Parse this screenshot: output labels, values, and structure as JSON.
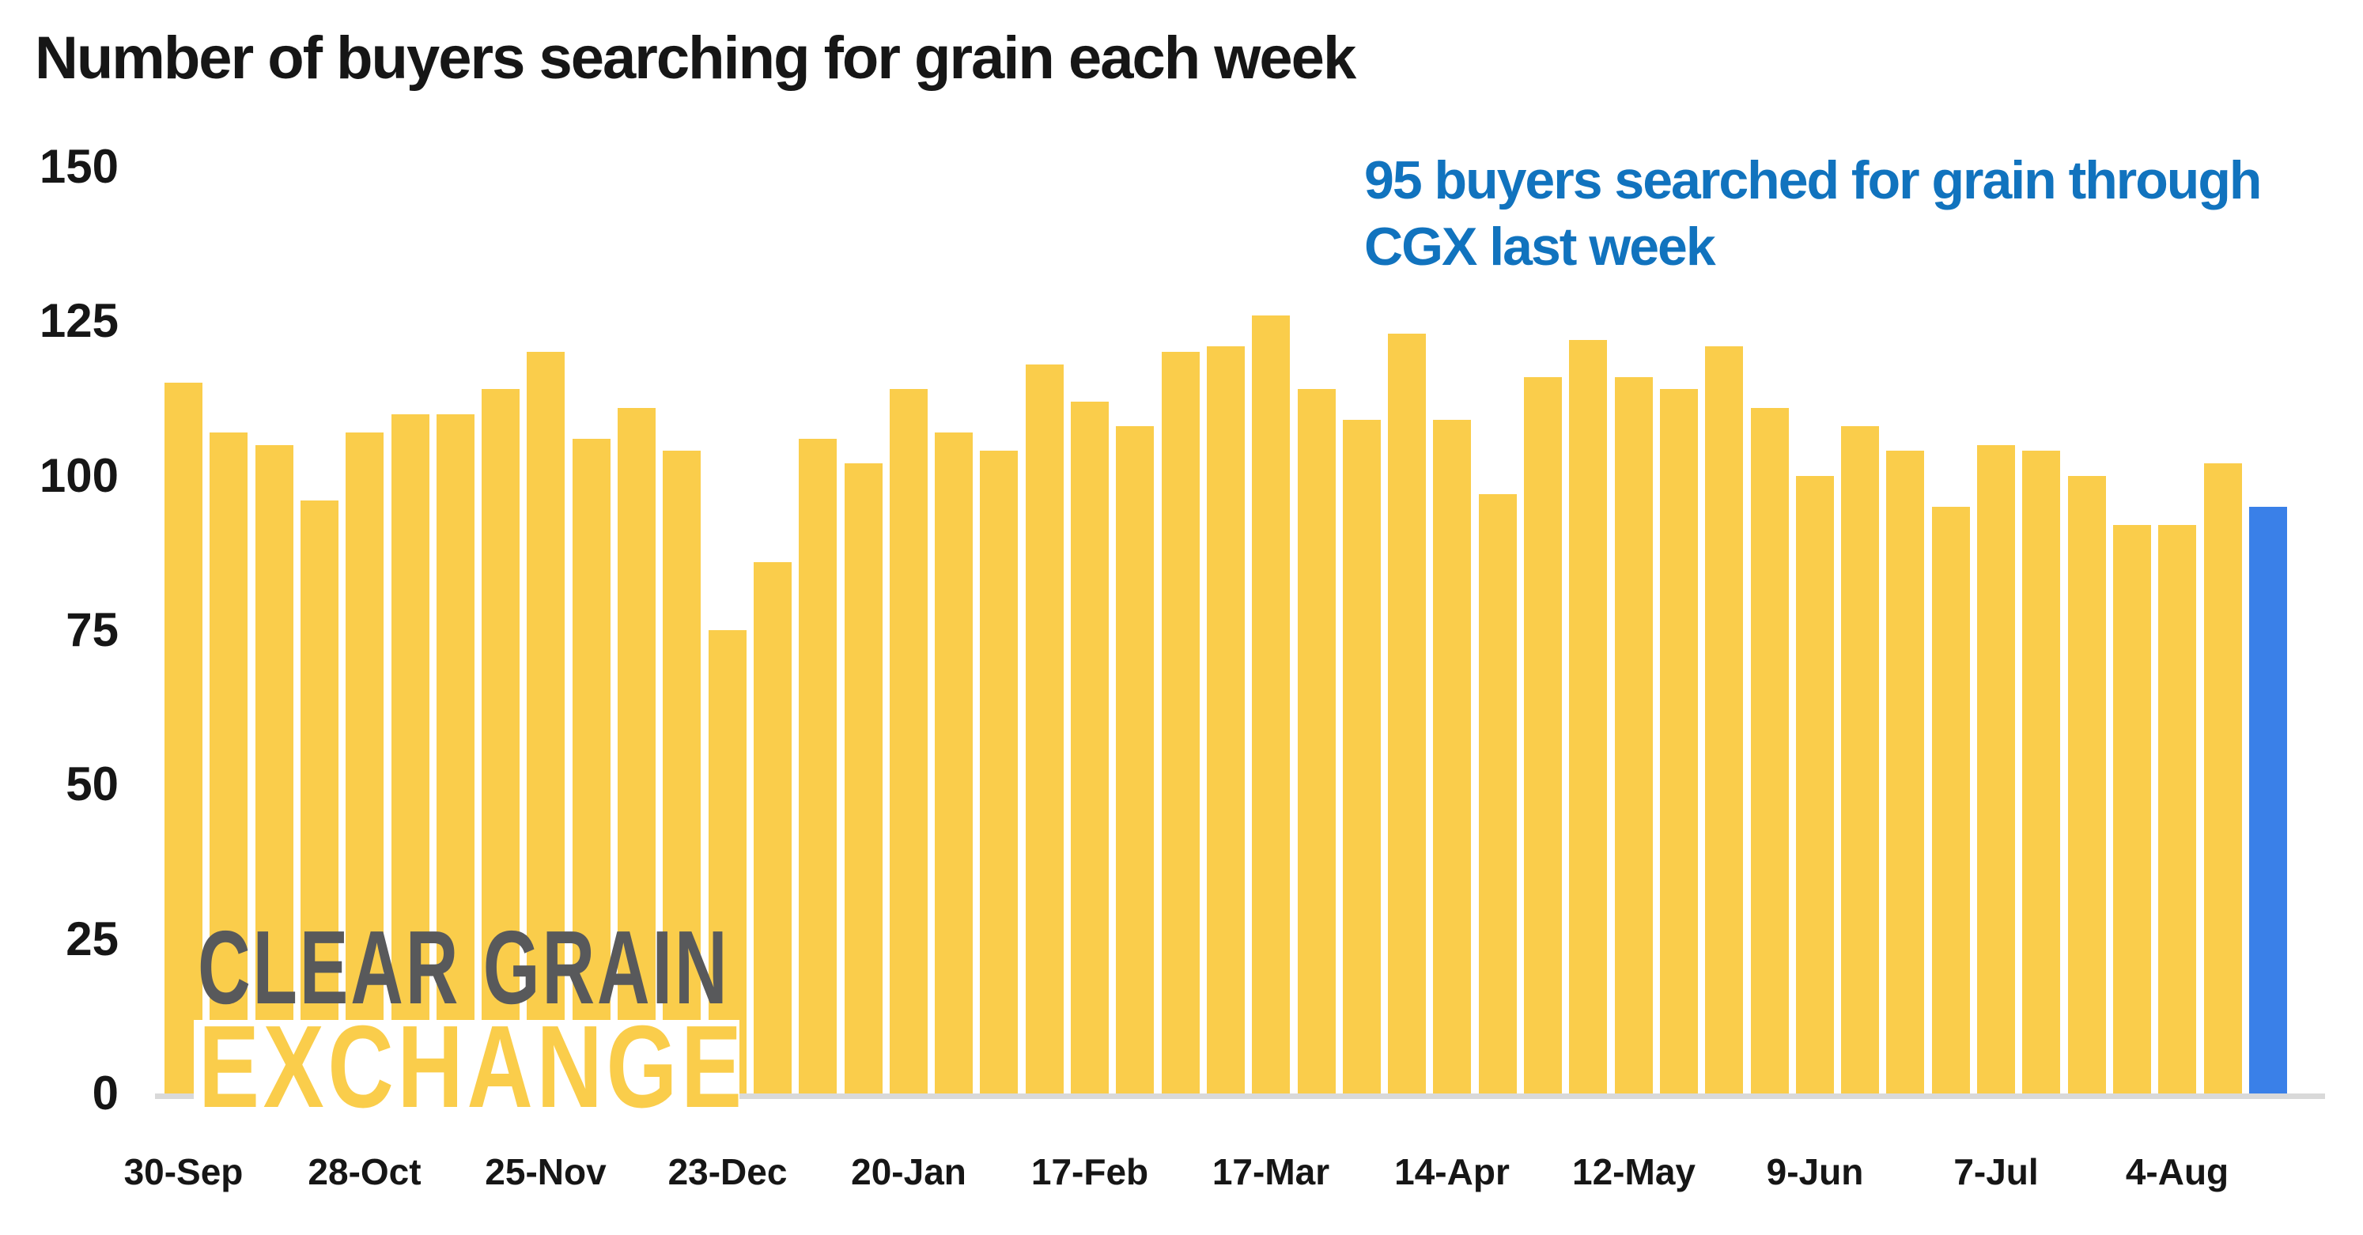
{
  "title": "Number of buyers searching for grain each week",
  "annotation": {
    "line1": "95 buyers searched for grain through",
    "line2": "CGX last week",
    "color": "#1173BE"
  },
  "watermark": {
    "line1": "CLEAR GRAIN",
    "line2": "EXCHANGE",
    "gray": "#58595B"
  },
  "colors": {
    "bar": "#FACD4B",
    "highlight_bar": "#3A80E8",
    "axis_line": "#D9D9D9",
    "text": "#161616"
  },
  "y_axis": {
    "ticks": [
      0,
      25,
      50,
      75,
      100,
      125,
      150
    ],
    "min": 0,
    "max": 150
  },
  "x_axis": {
    "visible_labels": [
      "30-Sep",
      "28-Oct",
      "25-Nov",
      "23-Dec",
      "20-Jan",
      "17-Feb",
      "17-Mar",
      "14-Apr",
      "12-May",
      "9-Jun",
      "7-Jul",
      "4-Aug"
    ],
    "label_every_n_bars": 4
  },
  "chart_data": {
    "type": "bar",
    "title": "Number of buyers searching for grain each week",
    "xlabel": "",
    "ylabel": "",
    "ylim": [
      0,
      150
    ],
    "grid": false,
    "legend": false,
    "x": [
      "30-Sep",
      "7-Oct",
      "14-Oct",
      "21-Oct",
      "28-Oct",
      "4-Nov",
      "11-Nov",
      "18-Nov",
      "25-Nov",
      "2-Dec",
      "9-Dec",
      "16-Dec",
      "23-Dec",
      "30-Dec",
      "6-Jan",
      "13-Jan",
      "20-Jan",
      "27-Jan",
      "3-Feb",
      "10-Feb",
      "17-Feb",
      "24-Feb",
      "3-Mar",
      "10-Mar",
      "17-Mar",
      "24-Mar",
      "31-Mar",
      "7-Apr",
      "14-Apr",
      "21-Apr",
      "28-Apr",
      "5-May",
      "12-May",
      "19-May",
      "26-May",
      "2-Jun",
      "9-Jun",
      "16-Jun",
      "23-Jun",
      "30-Jun",
      "7-Jul",
      "14-Jul",
      "21-Jul",
      "28-Jul",
      "4-Aug",
      "11-Aug",
      "18-Aug"
    ],
    "values": [
      115,
      107,
      105,
      96,
      107,
      110,
      110,
      114,
      120,
      106,
      111,
      104,
      75,
      86,
      106,
      102,
      114,
      107,
      104,
      118,
      112,
      108,
      120,
      121,
      126,
      114,
      109,
      123,
      109,
      97,
      116,
      122,
      116,
      114,
      121,
      111,
      100,
      108,
      104,
      95,
      105,
      104,
      100,
      92,
      92,
      102,
      95
    ],
    "highlight_index": 46,
    "highlight_value": 95,
    "series_name": "Buyers searching for grain"
  }
}
